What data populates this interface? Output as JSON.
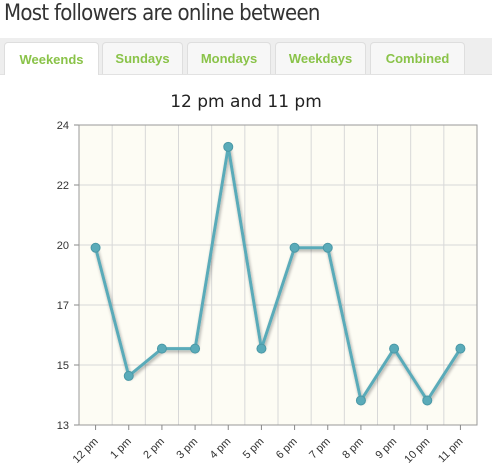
{
  "heading": "Most followers are online between",
  "tabs": [
    {
      "label": "Weekends",
      "active": true
    },
    {
      "label": "Sundays",
      "active": false
    },
    {
      "label": "Mondays",
      "active": false
    },
    {
      "label": "Weekdays",
      "active": false
    },
    {
      "label": "Combined",
      "active": false
    }
  ],
  "colors": {
    "accent_tab_text": "#8ac349",
    "line": "#5aabb9",
    "plot_background": "#fdfcf4",
    "grid": "#d8d8d8"
  },
  "chart_data": {
    "type": "line",
    "title": "12 pm and 11 pm",
    "categories": [
      "12 pm",
      "1 pm",
      "2 pm",
      "3 pm",
      "4 pm",
      "5 pm",
      "6 pm",
      "7 pm",
      "8 pm",
      "9 pm",
      "10 pm",
      "11 pm"
    ],
    "series": [
      {
        "values": [
          19.5,
          14.8,
          15.8,
          15.8,
          23.2,
          15.8,
          19.5,
          19.5,
          13.9,
          15.8,
          13.9,
          15.8
        ]
      }
    ],
    "y_ticks": [
      "13",
      "15",
      "17",
      "20",
      "22",
      "24"
    ],
    "ylim": [
      13,
      24
    ],
    "grid": true,
    "legend": "none"
  }
}
